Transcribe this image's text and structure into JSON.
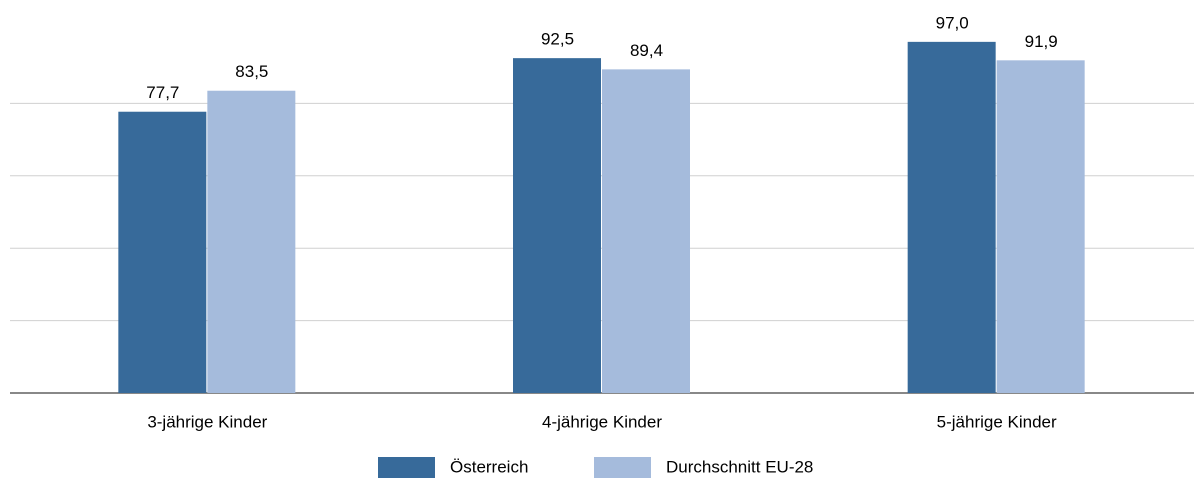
{
  "chart_data": {
    "type": "bar",
    "categories": [
      "3-jährige Kinder",
      "4-jährige Kinder",
      "5-jährige Kinder"
    ],
    "series": [
      {
        "name": "Österreich",
        "color": "#376a9a",
        "values": [
          77.7,
          92.5,
          97.0
        ],
        "value_labels": [
          "77,7",
          "92,5",
          "97,0"
        ]
      },
      {
        "name": "Durchschnitt EU-28",
        "color": "#a5bbdc",
        "values": [
          83.5,
          89.4,
          91.9
        ],
        "value_labels": [
          "83,5",
          "89,4",
          "91,9"
        ]
      }
    ],
    "ylim": [
      0,
      100
    ],
    "yticks": [
      0,
      20,
      40,
      60,
      80
    ],
    "grid": true,
    "legend": "bottom"
  }
}
